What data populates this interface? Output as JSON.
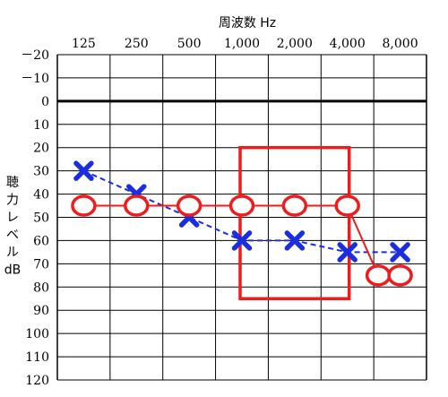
{
  "chart_data": {
    "type": "line",
    "xlabel": "周波数 Hz",
    "ylabel": [
      "聴",
      "力",
      "レ",
      "ベ",
      "ル",
      "dB"
    ],
    "categories": [
      "125",
      "250",
      "500",
      "1,000",
      "2,000",
      "4,000",
      "8,000"
    ],
    "y_tick_labels": [
      "－20",
      "－10",
      "0",
      "10",
      "20",
      "30",
      "40",
      "50",
      "60",
      "70",
      "80",
      "90",
      "100",
      "110",
      "120"
    ],
    "ylim": [
      -20,
      120
    ],
    "y_inverted": true,
    "grid": true,
    "series": [
      {
        "marker": "x",
        "line_style": "dashed",
        "color": "#1a2ee0",
        "points": [
          {
            "x": "125",
            "y": 30
          },
          {
            "x": "250",
            "y": 40
          },
          {
            "x": "500",
            "y": 50
          },
          {
            "x": "1,000",
            "y": 60
          },
          {
            "x": "2,000",
            "y": 60
          },
          {
            "x": "4,000",
            "y": 65
          },
          {
            "x": "8,000",
            "y": 65
          }
        ]
      },
      {
        "marker": "o",
        "line_style": "solid",
        "color": "#ee1c1c",
        "points": [
          {
            "x": "125",
            "y": 45
          },
          {
            "x": "250",
            "y": 45
          },
          {
            "x": "500",
            "y": 45
          },
          {
            "x": "1,000",
            "y": 45
          },
          {
            "x": "2,000",
            "y": 45
          },
          {
            "x": "4,000",
            "y": 45
          },
          {
            "x": "6,000",
            "y": 75
          },
          {
            "x": "8,000",
            "y": 75
          }
        ]
      }
    ],
    "highlight_box": {
      "x_range": [
        "1,000",
        "4,000"
      ],
      "y_range": [
        20,
        85
      ],
      "color": "#ee1c1c"
    }
  }
}
